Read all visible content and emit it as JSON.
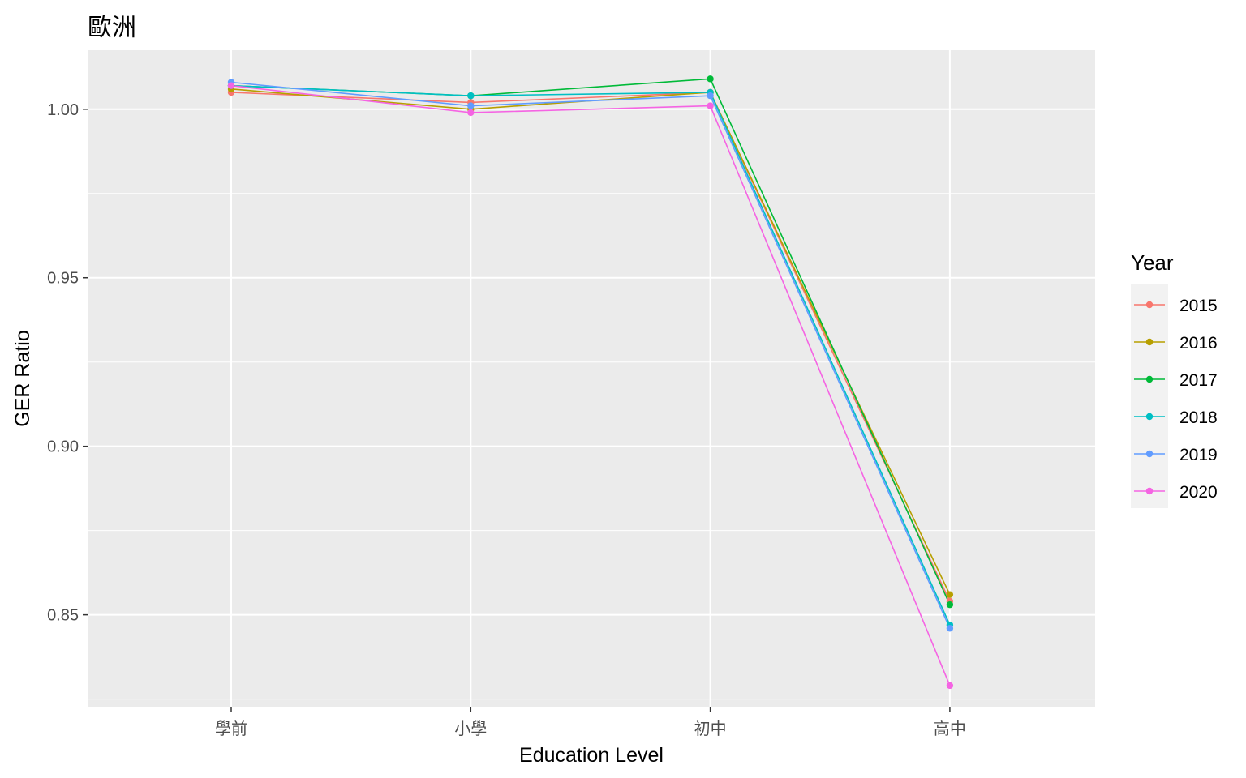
{
  "chart_data": {
    "type": "line",
    "title": "歐洲",
    "xlabel": "Education Level",
    "ylabel": "GER Ratio",
    "categories": [
      "學前",
      "小學",
      "初中",
      "高中"
    ],
    "ylim": [
      0.8225,
      1.0175
    ],
    "yticks": [
      0.85,
      0.9,
      0.95,
      1.0
    ],
    "ytick_labels": [
      "0.85",
      "0.90",
      "0.95",
      "1.00"
    ],
    "grid": true,
    "panel_background": "#ebebeb",
    "legend": {
      "title": "Year",
      "position": "right"
    },
    "series": [
      {
        "name": "2015",
        "color": "#F8766D",
        "values": [
          1.005,
          1.002,
          1.005,
          0.854
        ]
      },
      {
        "name": "2016",
        "color": "#B79F00",
        "values": [
          1.006,
          1.0,
          1.005,
          0.856
        ]
      },
      {
        "name": "2017",
        "color": "#00BA38",
        "values": [
          1.007,
          1.004,
          1.009,
          0.853
        ]
      },
      {
        "name": "2018",
        "color": "#00BFC4",
        "values": [
          1.007,
          1.004,
          1.005,
          0.847
        ]
      },
      {
        "name": "2019",
        "color": "#619CFF",
        "values": [
          1.008,
          1.001,
          1.004,
          0.846
        ]
      },
      {
        "name": "2020",
        "color": "#F564E3",
        "values": [
          1.007,
          0.999,
          1.001,
          0.829
        ]
      }
    ]
  }
}
